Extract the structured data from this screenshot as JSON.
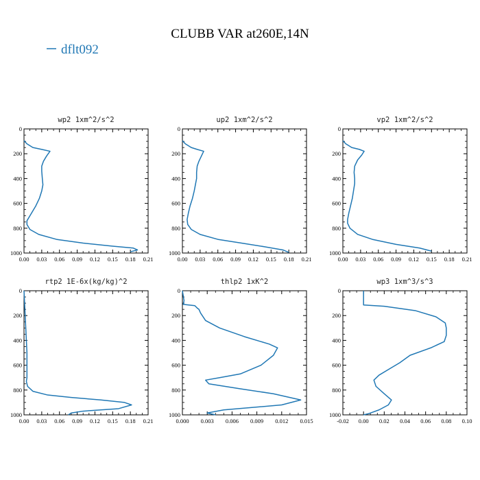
{
  "title": "CLUBB VAR at260E,14N",
  "legend": {
    "label": "dflt092",
    "color": "#1f77b4"
  },
  "chart_data": [
    {
      "type": "line",
      "title": "wp2  1xm^2/s^2",
      "xlim": [
        0,
        0.21
      ],
      "xticks": [
        "0.00",
        "0.03",
        "0.06",
        "0.09",
        "0.12",
        "0.15",
        "0.18",
        "0.21"
      ],
      "ylim": [
        0,
        1000
      ],
      "yticks": [
        "0",
        "200",
        "400",
        "600",
        "800",
        "1000"
      ],
      "y_inverted": true,
      "series": [
        {
          "color": "#1f77b4",
          "x": [
            0.0,
            0.005,
            0.015,
            0.03,
            0.044,
            0.038,
            0.033,
            0.03,
            0.03,
            0.031,
            0.032,
            0.03,
            0.026,
            0.02,
            0.015,
            0.01,
            0.005,
            0.005,
            0.01,
            0.025,
            0.055,
            0.1,
            0.15,
            0.185,
            0.192,
            0.18
          ],
          "y": [
            95,
            120,
            150,
            165,
            180,
            220,
            260,
            300,
            340,
            400,
            450,
            500,
            560,
            620,
            660,
            700,
            740,
            770,
            810,
            850,
            890,
            920,
            945,
            960,
            975,
            990
          ]
        }
      ]
    },
    {
      "type": "line",
      "title": "up2  1xm^2/s^2",
      "xlim": [
        0,
        0.21
      ],
      "xticks": [
        "0.00",
        "0.03",
        "0.06",
        "0.09",
        "0.12",
        "0.15",
        "0.18",
        "0.21"
      ],
      "ylim": [
        0,
        1000
      ],
      "yticks": [
        "0",
        "200",
        "400",
        "600",
        "800",
        "1000"
      ],
      "y_inverted": true,
      "series": [
        {
          "color": "#1f77b4",
          "x": [
            0.0,
            0.005,
            0.015,
            0.025,
            0.036,
            0.032,
            0.028,
            0.025,
            0.024,
            0.024,
            0.022,
            0.02,
            0.017,
            0.013,
            0.01,
            0.008,
            0.009,
            0.015,
            0.03,
            0.06,
            0.1,
            0.14,
            0.17,
            0.18
          ],
          "y": [
            95,
            120,
            150,
            165,
            180,
            220,
            260,
            300,
            350,
            400,
            450,
            500,
            560,
            620,
            680,
            730,
            770,
            810,
            850,
            890,
            920,
            950,
            975,
            995
          ]
        }
      ]
    },
    {
      "type": "line",
      "title": "vp2  1xm^2/s^2",
      "xlim": [
        0,
        0.21
      ],
      "xticks": [
        "0.00",
        "0.03",
        "0.06",
        "0.09",
        "0.12",
        "0.15",
        "0.18",
        "0.21"
      ],
      "ylim": [
        0,
        1000
      ],
      "yticks": [
        "0",
        "200",
        "400",
        "600",
        "800",
        "1000"
      ],
      "y_inverted": true,
      "series": [
        {
          "color": "#1f77b4",
          "x": [
            0.0,
            0.005,
            0.015,
            0.028,
            0.036,
            0.032,
            0.025,
            0.02,
            0.019,
            0.02,
            0.02,
            0.018,
            0.016,
            0.013,
            0.01,
            0.008,
            0.008,
            0.012,
            0.025,
            0.05,
            0.09,
            0.13,
            0.15
          ],
          "y": [
            95,
            120,
            150,
            165,
            180,
            210,
            250,
            300,
            350,
            400,
            440,
            500,
            560,
            620,
            680,
            730,
            760,
            800,
            850,
            890,
            930,
            960,
            985
          ]
        }
      ]
    },
    {
      "type": "line",
      "title": "rtp2  1E-6x(kg/kg)^2",
      "xlim": [
        0,
        0.21
      ],
      "xticks": [
        "0.00",
        "0.03",
        "0.06",
        "0.09",
        "0.12",
        "0.15",
        "0.18",
        "0.21"
      ],
      "ylim": [
        0,
        1000
      ],
      "yticks": [
        "0",
        "200",
        "400",
        "600",
        "800",
        "1000"
      ],
      "y_inverted": true,
      "series": [
        {
          "color": "#1f77b4",
          "x": [
            0.0,
            0.001,
            0.002,
            0.003,
            0.004,
            0.005,
            0.005,
            0.005,
            0.004,
            0.006,
            0.015,
            0.04,
            0.08,
            0.13,
            0.17,
            0.182,
            0.16,
            0.1,
            0.08,
            0.075
          ],
          "y": [
            0,
            100,
            200,
            300,
            400,
            500,
            600,
            700,
            730,
            770,
            810,
            840,
            860,
            880,
            900,
            920,
            950,
            970,
            985,
            1000
          ]
        }
      ]
    },
    {
      "type": "line",
      "title": "thlp2  1xK^2",
      "xlim": [
        0,
        0.015
      ],
      "xticks": [
        "0.000",
        "0.003",
        "0.006",
        "0.009",
        "0.012",
        "0.015"
      ],
      "ylim": [
        0,
        1000
      ],
      "yticks": [
        "0",
        "200",
        "400",
        "600",
        "800",
        "1000"
      ],
      "y_inverted": true,
      "series": [
        {
          "color": "#1f77b4",
          "x": [
            0.0,
            0.0002,
            0.0001,
            0.0015,
            0.0018,
            0.002,
            0.0022,
            0.0028,
            0.0045,
            0.0075,
            0.0105,
            0.0115,
            0.011,
            0.0095,
            0.007,
            0.0045,
            0.0028,
            0.0032,
            0.007,
            0.011,
            0.0143,
            0.012,
            0.005,
            0.003,
            0.004
          ],
          "y": [
            0,
            80,
            110,
            120,
            140,
            150,
            180,
            240,
            300,
            370,
            430,
            460,
            520,
            600,
            670,
            700,
            720,
            750,
            790,
            830,
            880,
            920,
            960,
            985,
            1000
          ]
        }
      ]
    },
    {
      "type": "line",
      "title": "wp3  1xm^3/s^3",
      "xlim": [
        -0.02,
        0.1
      ],
      "xticks": [
        "-0.02",
        "0.00",
        "0.02",
        "0.04",
        "0.06",
        "0.08",
        "0.10"
      ],
      "ylim": [
        0,
        1000
      ],
      "yticks": [
        "0",
        "200",
        "400",
        "600",
        "800",
        "1000"
      ],
      "y_inverted": true,
      "series": [
        {
          "color": "#1f77b4",
          "x": [
            0.0,
            0.0,
            0.02,
            0.05,
            0.07,
            0.079,
            0.08,
            0.08,
            0.078,
            0.065,
            0.045,
            0.035,
            0.025,
            0.015,
            0.01,
            0.012,
            0.02,
            0.027,
            0.024,
            0.015,
            0.005,
            0.0
          ],
          "y": [
            0,
            115,
            125,
            160,
            210,
            260,
            300,
            360,
            410,
            460,
            520,
            580,
            630,
            680,
            720,
            770,
            830,
            880,
            920,
            960,
            990,
            1000
          ]
        }
      ]
    }
  ]
}
